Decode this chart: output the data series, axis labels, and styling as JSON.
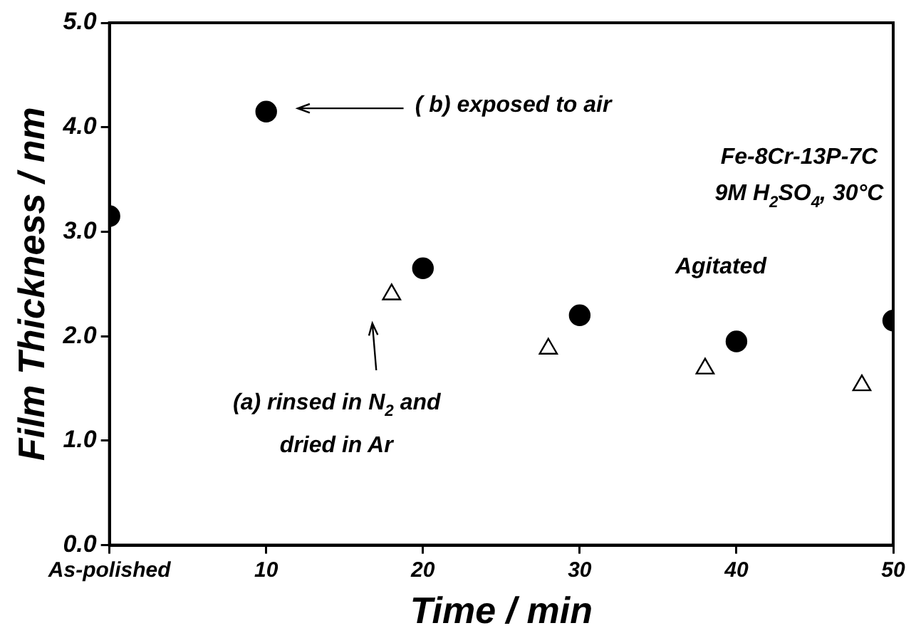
{
  "chart_data": {
    "type": "scatter",
    "xlabel": "Time / min",
    "ylabel": "Film Thickness / nm",
    "xlim": [
      0,
      50
    ],
    "xticks": [
      {
        "value": 0,
        "label": "As-polished"
      },
      10,
      20,
      30,
      40,
      50
    ],
    "ylim": [
      0,
      5
    ],
    "yticks": [
      {
        "value": 0,
        "label": "0.0"
      },
      {
        "value": 1,
        "label": "1.0"
      },
      {
        "value": 2,
        "label": "2.0"
      },
      {
        "value": 3,
        "label": "3.0"
      },
      {
        "value": 4,
        "label": "4.0"
      },
      {
        "value": 5,
        "label": "5.0"
      }
    ],
    "grid": false,
    "legend": false,
    "series": [
      {
        "color": "#000000",
        "marker": "circle",
        "x": [
          0,
          10,
          20,
          30,
          40,
          50
        ],
        "values": [
          3.15,
          4.15,
          2.65,
          2.2,
          1.95,
          2.15
        ]
      },
      {
        "color": "#000000",
        "marker": "triangle",
        "x": [
          18,
          28,
          38,
          48
        ],
        "values": [
          2.4,
          1.88,
          1.69,
          1.53
        ]
      }
    ],
    "annotations": [
      "( b) exposed to air",
      "(a) rinsed in N$_{2}$ and dried in Ar",
      "Fe-8Cr-13P-7C",
      "9M H$_{2}$SO$_{4}$, 30°C",
      "Agitated"
    ]
  }
}
